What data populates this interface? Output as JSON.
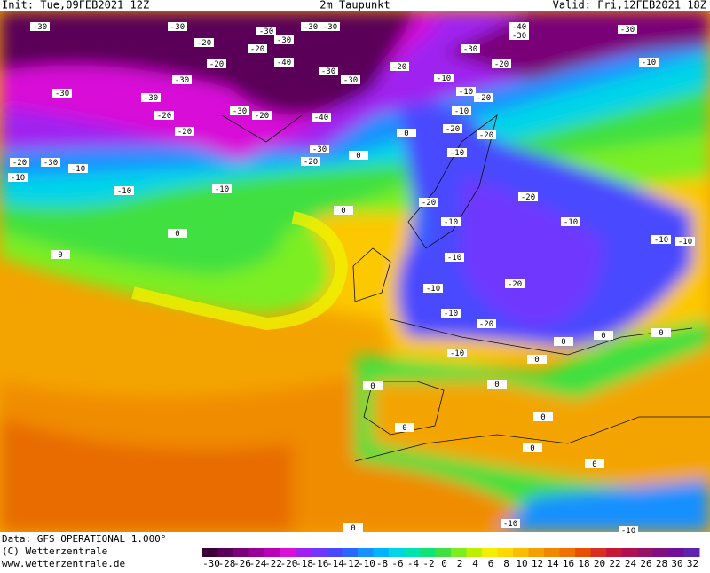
{
  "header": {
    "init": "Init: Tue,09FEB2021 12Z",
    "title": "2m Taupunkt",
    "valid": "Valid: Fri,12FEB2021 18Z"
  },
  "footer": {
    "data": "Data: GFS OPERATIONAL 1.000°",
    "copyright": "(C) Wetterzentrale",
    "url": "www.wetterzentrale.de"
  },
  "colorbar": {
    "ticks": [
      -30,
      -28,
      -26,
      -24,
      -22,
      -20,
      -18,
      -16,
      -14,
      -12,
      -10,
      -8,
      -6,
      -4,
      -2,
      0,
      2,
      4,
      6,
      8,
      10,
      12,
      14,
      16,
      18,
      20,
      22,
      24,
      26,
      28,
      30,
      32
    ],
    "colors": [
      "#3c0038",
      "#5a0058",
      "#7a0078",
      "#9a0098",
      "#b800b8",
      "#d810d8",
      "#a020f0",
      "#7038ff",
      "#4848ff",
      "#2868ff",
      "#1890ff",
      "#00b4ff",
      "#00d4e8",
      "#00e4b0",
      "#10e478",
      "#40e040",
      "#7cee20",
      "#bcf000",
      "#f0f000",
      "#ffd800",
      "#fcbc00",
      "#f4a000",
      "#f08800",
      "#f07000",
      "#e85000",
      "#d83020",
      "#c81838",
      "#b01050",
      "#981068",
      "#801080",
      "#701098",
      "#6020b0"
    ]
  },
  "map_labels": [
    "-30",
    "-20",
    "-30",
    "-20",
    "-30",
    "-30",
    "-40",
    "-30",
    "-30",
    "-30",
    "-30",
    "-20",
    "-30",
    "-30",
    "-30",
    "-20",
    "-30",
    "-20",
    "-40",
    "-20",
    "-30",
    "-20",
    "-20",
    "-30",
    "-10",
    "-10",
    "-10",
    "-10",
    "0",
    "0",
    "-20",
    "-10",
    "-10",
    "-20",
    "-10",
    "-20",
    "-20",
    "-10",
    "-30",
    "-20",
    "-30",
    "-40",
    "-30",
    "-10",
    "-20",
    "-10",
    "-10",
    "-20",
    "-10",
    "-10",
    "-20",
    "-10",
    "-20",
    "-10",
    "-10",
    "-10",
    "0",
    "0",
    "0",
    "0",
    "0",
    "0",
    "0",
    "0",
    "0",
    "0",
    "0",
    "0",
    "0",
    "0",
    "-10",
    "-10"
  ]
}
